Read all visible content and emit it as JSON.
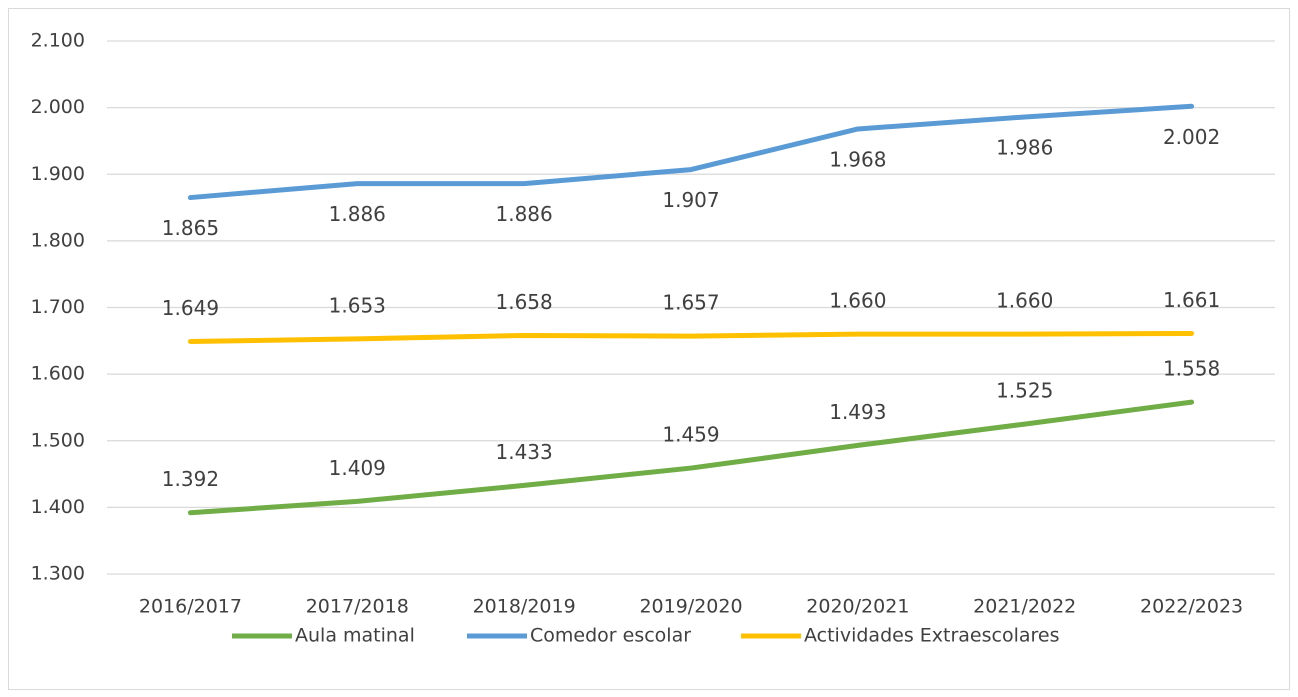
{
  "chart_data": {
    "type": "line",
    "categories": [
      "2016/2017",
      "2017/2018",
      "2018/2019",
      "2019/2020",
      "2020/2021",
      "2021/2022",
      "2022/2023"
    ],
    "series": [
      {
        "name": "Aula matinal",
        "color": "#70ad47",
        "values": [
          1392,
          1409,
          1433,
          1459,
          1493,
          1525,
          1558
        ],
        "value_labels": [
          "1.392",
          "1.409",
          "1.433",
          "1.459",
          "1.493",
          "1.525",
          "1.558"
        ]
      },
      {
        "name": "Comedor escolar",
        "color": "#5b9bd5",
        "values": [
          1865,
          1886,
          1886,
          1907,
          1968,
          1986,
          2002
        ],
        "value_labels": [
          "1.865",
          "1.886",
          "1.886",
          "1.907",
          "1.968",
          "1.986",
          "2.002"
        ]
      },
      {
        "name": "Actividades Extraescolares",
        "color": "#ffc000",
        "values": [
          1649,
          1653,
          1658,
          1657,
          1660,
          1660,
          1661
        ],
        "value_labels": [
          "1.649",
          "1.653",
          "1.658",
          "1.657",
          "1.660",
          "1.660",
          "1.661"
        ]
      }
    ],
    "ylim": [
      1300,
      2100
    ],
    "yticks": [
      {
        "value": 1300,
        "label": "1.300"
      },
      {
        "value": 1400,
        "label": "1.400"
      },
      {
        "value": 1500,
        "label": "1.500"
      },
      {
        "value": 1600,
        "label": "1.600"
      },
      {
        "value": 1700,
        "label": "1.700"
      },
      {
        "value": 1800,
        "label": "1.800"
      },
      {
        "value": 1900,
        "label": "1.900"
      },
      {
        "value": 2000,
        "label": "2.000"
      },
      {
        "value": 2100,
        "label": "2.100"
      }
    ],
    "grid": true,
    "legend": "bottom"
  }
}
